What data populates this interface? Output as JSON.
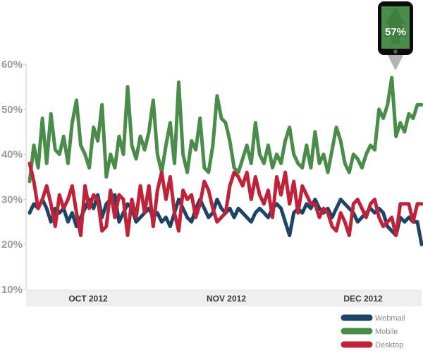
{
  "chart_data": {
    "type": "line",
    "ylim": [
      10,
      60
    ],
    "yticks": [
      10,
      20,
      30,
      40,
      50,
      60
    ],
    "ytick_labels": [
      "10%",
      "20%",
      "30%",
      "40%",
      "50%",
      "60%"
    ],
    "xtick_labels": [
      "OCT 2012",
      "NOV 2012",
      "DEC 2012"
    ],
    "grid": false,
    "legend_position": "bottom-right",
    "x": [
      1,
      2,
      3,
      4,
      5,
      6,
      7,
      8,
      9,
      10,
      11,
      12,
      13,
      14,
      15,
      16,
      17,
      18,
      19,
      20,
      21,
      22,
      23,
      24,
      25,
      26,
      27,
      28,
      29,
      30,
      31,
      32,
      33,
      34,
      35,
      36,
      37,
      38,
      39,
      40,
      41,
      42,
      43,
      44,
      45,
      46,
      47,
      48,
      49,
      50,
      51,
      52,
      53,
      54,
      55,
      56,
      57,
      58,
      59,
      60,
      61,
      62,
      63,
      64,
      65,
      66,
      67,
      68,
      69,
      70,
      71,
      72,
      73,
      74,
      75,
      76,
      77,
      78,
      79,
      80,
      81,
      82,
      83,
      84,
      85,
      86,
      87,
      88,
      89,
      90,
      91,
      92,
      93
    ],
    "series": [
      {
        "name": "Webmail",
        "color": "#1d4466",
        "values": [
          27,
          29,
          28,
          30,
          28,
          25,
          28,
          27,
          28,
          25,
          27,
          24,
          26,
          28,
          30,
          28,
          31,
          26,
          29,
          30,
          31,
          25,
          27,
          29,
          28,
          25,
          26,
          27,
          28,
          26,
          27,
          25,
          26,
          24,
          27,
          30,
          28,
          26,
          25,
          28,
          30,
          28,
          26,
          27,
          30,
          28,
          27,
          28,
          26,
          28,
          27,
          26,
          25,
          27,
          28,
          27,
          26,
          28,
          29,
          28,
          25,
          22,
          27,
          28,
          27,
          29,
          28,
          30,
          28,
          27,
          28,
          26,
          28,
          30,
          29,
          28,
          27,
          25,
          26,
          27,
          28,
          27,
          28,
          27,
          24,
          23,
          22,
          26,
          25,
          26,
          25,
          25,
          20
        ]
      },
      {
        "name": "Mobile",
        "color": "#4a8c4a",
        "values": [
          34,
          42,
          37,
          48,
          38,
          49,
          41,
          40,
          44,
          38,
          47,
          52,
          42,
          40,
          37,
          46,
          43,
          51,
          35,
          40,
          37,
          44,
          40,
          55,
          42,
          39,
          44,
          41,
          45,
          52,
          40,
          36,
          42,
          47,
          38,
          56,
          40,
          36,
          43,
          41,
          48,
          37,
          36,
          42,
          53,
          48,
          47,
          43,
          37,
          36,
          39,
          42,
          38,
          47,
          40,
          38,
          42,
          37,
          40,
          38,
          43,
          46,
          40,
          38,
          37,
          42,
          37,
          45,
          38,
          40,
          36,
          41,
          46,
          43,
          38,
          36,
          40,
          39,
          37,
          40,
          42,
          41,
          50,
          48,
          51,
          57,
          44,
          47,
          45,
          49,
          48,
          51,
          51
        ]
      },
      {
        "name": "Desktop",
        "color": "#c0223a",
        "values": [
          38,
          34,
          28,
          30,
          33,
          29,
          24,
          31,
          28,
          30,
          33,
          27,
          22,
          33,
          28,
          31,
          30,
          23,
          24,
          32,
          26,
          31,
          30,
          22,
          30,
          26,
          33,
          27,
          33,
          24,
          32,
          36,
          30,
          35,
          27,
          23,
          32,
          30,
          31,
          26,
          29,
          34,
          32,
          28,
          25,
          26,
          27,
          33,
          36,
          35,
          33,
          36,
          30,
          35,
          31,
          29,
          32,
          26,
          35,
          31,
          36,
          29,
          34,
          27,
          33,
          31,
          29,
          29,
          26,
          28,
          27,
          24,
          23,
          27,
          25,
          22,
          29,
          30,
          28,
          26,
          29,
          30,
          26,
          24,
          25,
          26,
          22,
          29,
          29,
          29,
          25,
          29,
          29
        ]
      }
    ],
    "annotation": {
      "text": "57%"
    }
  }
}
